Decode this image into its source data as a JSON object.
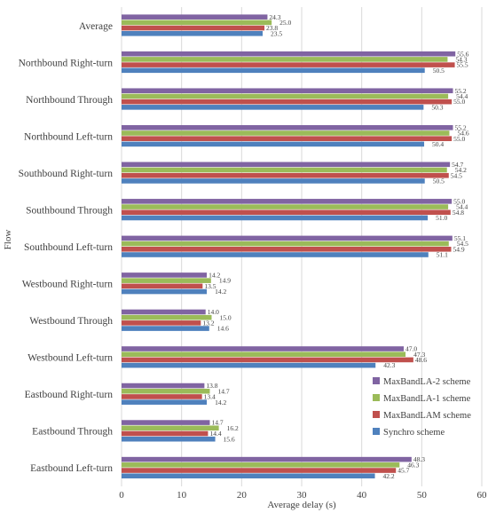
{
  "chart_data": {
    "type": "bar",
    "orientation": "horizontal",
    "xlabel": "Average delay (s)",
    "ylabel": "Flow",
    "xlim": [
      0,
      60
    ],
    "xticks": [
      0,
      10,
      20,
      30,
      40,
      50,
      60
    ],
    "grid": true,
    "legend_position": "bottom-right",
    "categories": [
      "Average",
      "Northbound Right-turn",
      "Northbound Through",
      "Northbound Left-turn",
      "Southbound Right-turn",
      "Southbound Through",
      "Southbound Left-turn",
      "Westbound Right-turn",
      "Westbound Through",
      "Westbound Left-turn",
      "Eastbound Right-turn",
      "Eastbound Through",
      "Eastbound Left-turn"
    ],
    "series": [
      {
        "name": "MaxBandLA-2 scheme",
        "color": "#8064a2",
        "values": [
          24.3,
          55.6,
          55.2,
          55.2,
          54.7,
          55.0,
          55.1,
          14.2,
          14.0,
          47.0,
          13.8,
          14.7,
          48.3
        ]
      },
      {
        "name": "MaxBandLA-1 scheme",
        "color": "#9bbb59",
        "values": [
          25.0,
          54.3,
          54.4,
          54.6,
          54.2,
          54.4,
          54.5,
          14.9,
          15.0,
          47.3,
          14.7,
          16.2,
          46.3
        ]
      },
      {
        "name": "MaxBandLAM scheme",
        "color": "#c0504d",
        "values": [
          23.8,
          55.5,
          55.0,
          55.0,
          54.5,
          54.8,
          54.9,
          13.5,
          13.2,
          48.6,
          13.4,
          14.4,
          45.7
        ]
      },
      {
        "name": "Synchro scheme",
        "color": "#4f81bd",
        "values": [
          23.5,
          50.5,
          50.3,
          50.4,
          50.5,
          51.0,
          51.1,
          14.2,
          14.6,
          42.3,
          14.2,
          15.6,
          42.2
        ]
      }
    ]
  }
}
